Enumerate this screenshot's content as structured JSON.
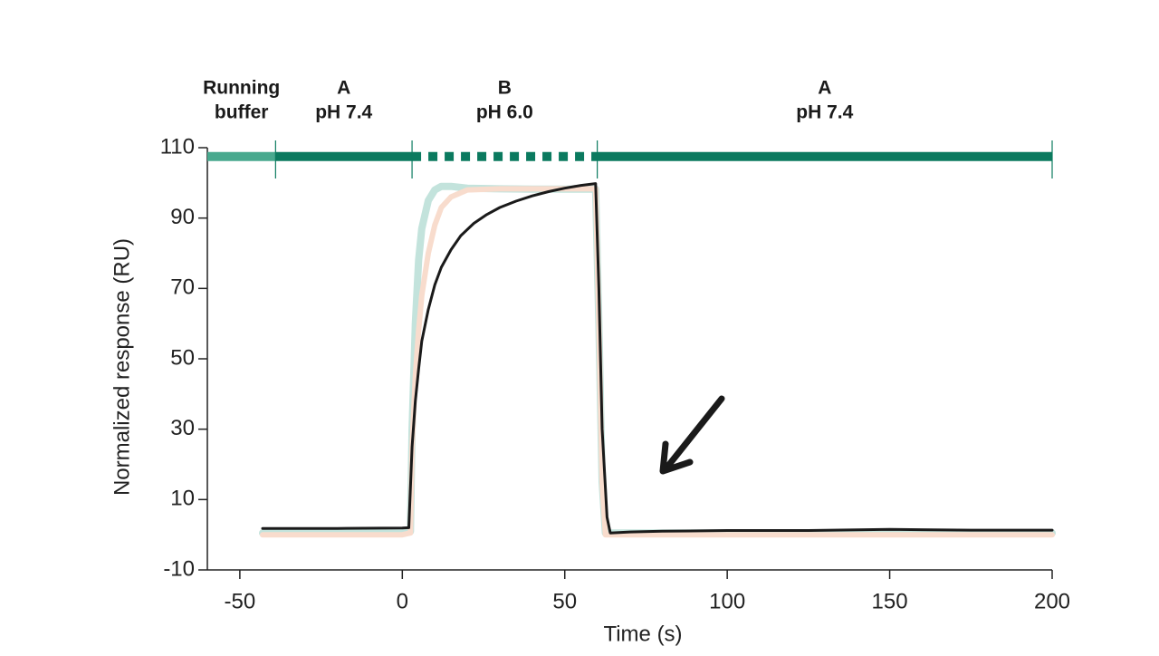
{
  "chart_data": {
    "type": "line",
    "x_label": "Time (s)",
    "y_label": "Normalized response (RU)",
    "xlim": [
      -60,
      200
    ],
    "xticks": [
      -50,
      0,
      50,
      100,
      150,
      200
    ],
    "ylim": [
      -10,
      110
    ],
    "yticks": [
      -10,
      10,
      30,
      50,
      70,
      90,
      110
    ],
    "phase_level": 107.5,
    "phase_color": "#0b7a5f",
    "phase_light_color": "#48a98e",
    "phases": [
      {
        "label": [
          "Running",
          "buffer"
        ],
        "start": -60,
        "end": -39,
        "style": "light"
      },
      {
        "label": [
          "A",
          "pH 7.4"
        ],
        "start": -39,
        "end": 3,
        "style": "solid"
      },
      {
        "label": [
          "B",
          "pH 6.0"
        ],
        "start": 3,
        "end": 60,
        "style": "dashed"
      },
      {
        "label": [
          "A",
          "pH 7.4"
        ],
        "start": 60,
        "end": 200,
        "style": "solid"
      }
    ],
    "series": [
      {
        "color": "#c3e3dc",
        "width": 8,
        "x": [
          -43,
          0,
          2.5,
          3,
          4,
          5,
          6,
          8,
          10,
          12,
          15,
          20,
          30,
          40,
          50,
          59.5,
          60.5,
          61.5,
          62.5,
          70,
          100,
          150,
          200
        ],
        "values": [
          0.5,
          0.5,
          1,
          30,
          60,
          78,
          87,
          95,
          98,
          99,
          99,
          98.5,
          98.3,
          98.2,
          98.2,
          98.2,
          60,
          15,
          0.5,
          0.5,
          0.5,
          0.5,
          0.5
        ]
      },
      {
        "color": "#f8dccd",
        "width": 6,
        "x": [
          -43,
          0,
          2.5,
          3,
          4,
          5,
          6,
          8,
          10,
          12,
          15,
          20,
          30,
          40,
          50,
          59.5,
          60.5,
          61.5,
          62.5,
          70,
          100,
          150,
          200
        ],
        "values": [
          0,
          0,
          0.5,
          25,
          45,
          58,
          68,
          80,
          88,
          93,
          96,
          98,
          98.3,
          98.3,
          98.3,
          98.3,
          60,
          15,
          0,
          0,
          0,
          0,
          0
        ]
      },
      {
        "color": "#1a1a1a",
        "width": 3,
        "x": [
          -43,
          -20,
          0,
          2,
          3,
          4,
          5,
          6,
          8,
          10,
          12,
          15,
          18,
          22,
          26,
          30,
          35,
          40,
          45,
          50,
          55,
          59.5,
          60.5,
          61.5,
          63,
          64,
          70,
          80,
          100,
          125,
          150,
          175,
          200
        ],
        "values": [
          1.8,
          1.8,
          1.9,
          2,
          25,
          38,
          47,
          55,
          64,
          71,
          76,
          81,
          85,
          88.5,
          91,
          93,
          94.8,
          96.3,
          97.5,
          98.5,
          99.3,
          99.8,
          70,
          30,
          5,
          0.5,
          0.8,
          1,
          1.2,
          1.2,
          1.5,
          1.3,
          1.3
        ]
      }
    ]
  }
}
